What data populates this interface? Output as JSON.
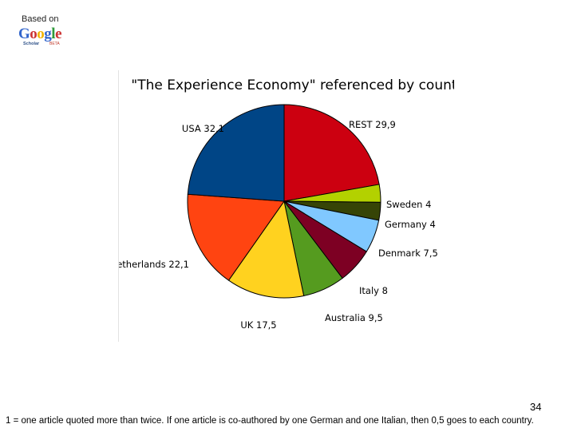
{
  "brand": {
    "based_on": "Based on",
    "google_letters": [
      {
        "ch": "G",
        "color": "#3366cc"
      },
      {
        "ch": "o",
        "color": "#cc3333"
      },
      {
        "ch": "o",
        "color": "#f2b300"
      },
      {
        "ch": "g",
        "color": "#3366cc"
      },
      {
        "ch": "l",
        "color": "#2f9a3a"
      },
      {
        "ch": "e",
        "color": "#cc3333"
      }
    ],
    "scholar": "Scholar",
    "beta": "BETA"
  },
  "chart_data": {
    "type": "pie",
    "title": "\"The Experience Economy\" referenced by country",
    "start_angle_deg": 0,
    "direction": "clockwise",
    "slices": [
      {
        "name": "REST",
        "value": 29.9,
        "value_label": "29,9",
        "color": "#cc0010"
      },
      {
        "name": "Sweden",
        "value": 4,
        "value_label": "4",
        "color": "#b3d100"
      },
      {
        "name": "Germany",
        "value": 4,
        "value_label": "4",
        "color": "#364406"
      },
      {
        "name": "Denmark",
        "value": 7.5,
        "value_label": "7,5",
        "color": "#80c8ff"
      },
      {
        "name": "Italy",
        "value": 8,
        "value_label": "8",
        "color": "#7d0023"
      },
      {
        "name": "Australia",
        "value": 9.5,
        "value_label": "9,5",
        "color": "#559b1f"
      },
      {
        "name": "UK",
        "value": 17.5,
        "value_label": "17,5",
        "color": "#ffd21f"
      },
      {
        "name": "Netherlands",
        "value": 22.1,
        "value_label": "22,1",
        "color": "#ff4411"
      },
      {
        "name": "USA",
        "value": 32.1,
        "value_label": "32,1",
        "color": "#004586"
      }
    ]
  },
  "page_number": "34",
  "footnote": "1 = one article quoted more than twice. If one article is co-authored by one German and one Italian, then 0,5 goes to each country."
}
